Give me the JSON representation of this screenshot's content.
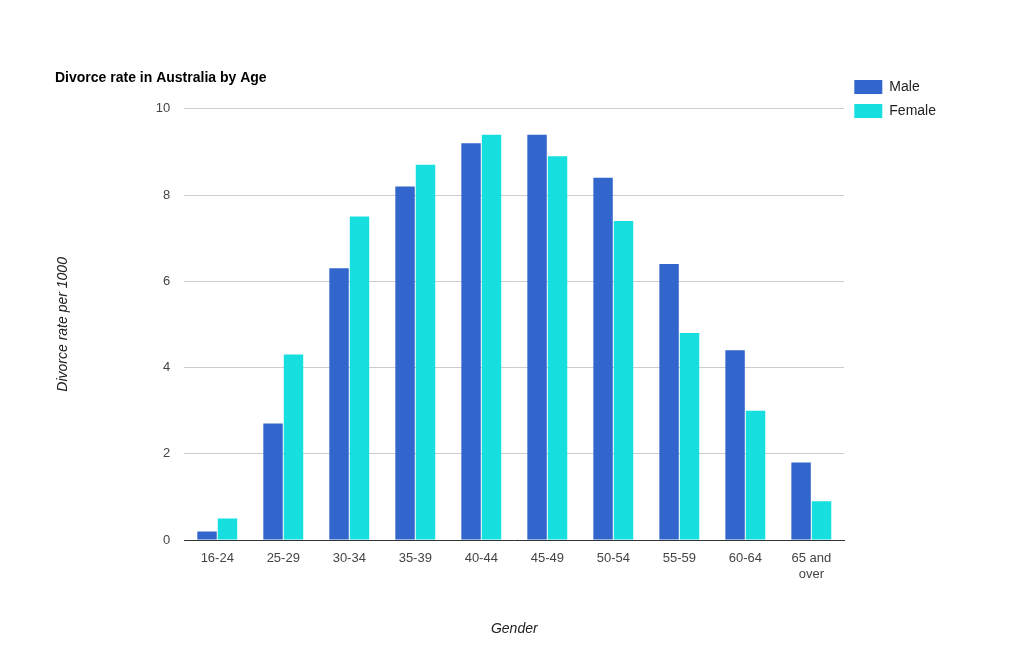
{
  "chart_data": {
    "type": "bar",
    "title": "Divorce rate in Australia by Age",
    "x_label": "Gender",
    "y_label": "Divorce rate per 1000",
    "categories": [
      "16-24",
      "25-29",
      "30-34",
      "35-39",
      "40-44",
      "45-49",
      "50-54",
      "55-59",
      "60-64",
      "65 and over"
    ],
    "series": [
      {
        "name": "Male",
        "color": "#3366cc",
        "values": [
          0.2,
          2.7,
          6.3,
          8.2,
          9.2,
          9.4,
          8.4,
          6.4,
          4.4,
          1.8
        ]
      },
      {
        "name": "Female",
        "color": "#17dfdf",
        "values": [
          0.5,
          4.3,
          7.5,
          8.7,
          9.4,
          8.9,
          7.4,
          4.8,
          3.0,
          0.9
        ]
      }
    ],
    "ylim": [
      0,
      10
    ],
    "yticks": [
      0,
      2,
      4,
      6,
      8,
      10
    ],
    "grid": true,
    "legend": "top-right"
  }
}
